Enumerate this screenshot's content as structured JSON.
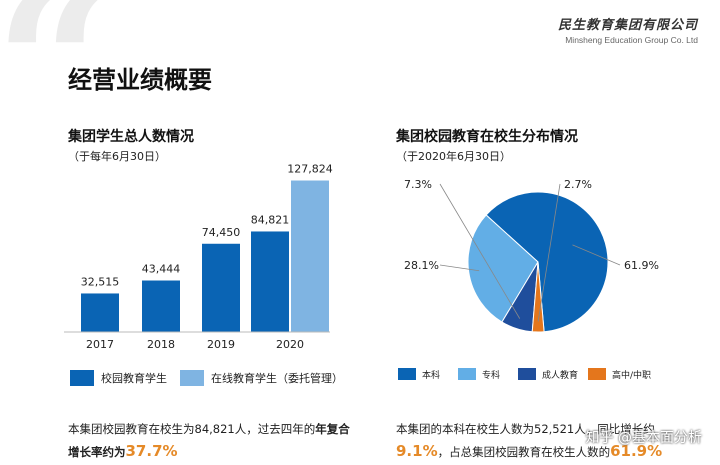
{
  "logo": {
    "cn": "民生教育集团有限公司",
    "en": "Minsheng Education Group Co. Ltd"
  },
  "page_title": "经营业绩概要",
  "left_panel": {
    "title": "集团学生总人数情况",
    "subtitle": "（于每年6月30日）"
  },
  "right_panel": {
    "title": "集团校园教育在校生分布情况",
    "subtitle": "（于2020年6月30日）"
  },
  "colors": {
    "campus": "#0a64b4",
    "online": "#7fb4e2",
    "bachelor": "#0a64b4",
    "junior": "#62aee6",
    "adult": "#1f4e9c",
    "secondary": "#e4761c",
    "highlight": "#e58a28"
  },
  "chart_data": [
    {
      "type": "bar",
      "categories": [
        "2017",
        "2018",
        "2019",
        "2020"
      ],
      "series": [
        {
          "name": "校园教育学生",
          "values": [
            32515,
            43444,
            74450,
            84821
          ],
          "labels": [
            "32,515",
            "43,444",
            "74,450",
            "84,821"
          ]
        },
        {
          "name": "在线教育学生（委托管理）",
          "values": [
            null,
            null,
            null,
            127824
          ],
          "labels": [
            "",
            "",
            "",
            "127,824"
          ]
        }
      ],
      "title": "集团学生总人数情况",
      "ylim": [
        0,
        135000
      ]
    },
    {
      "type": "pie",
      "slices": [
        {
          "name": "本科",
          "value": 61.9,
          "label": "61.9%"
        },
        {
          "name": "专科",
          "value": 28.1,
          "label": "28.1%"
        },
        {
          "name": "成人教育",
          "value": 7.3,
          "label": "7.3%"
        },
        {
          "name": "高中/中职",
          "value": 2.7,
          "label": "2.7%"
        }
      ],
      "title": "集团校园教育在校生分布情况"
    }
  ],
  "left_note": {
    "part1": "本集团校园教育在校生为84,821人，过去四年的",
    "bold": "年复合",
    "line2_bold": "增长率约为",
    "highlight": "37.7%"
  },
  "right_note": {
    "line1": "本集团的本科在校生人数为52,521人，同比增长约",
    "highlight1": "9.1%",
    "line2": "，占总集团校园教育在校生人数的",
    "highlight2": "61.9%"
  },
  "watermark": "知乎 @基本面分析"
}
